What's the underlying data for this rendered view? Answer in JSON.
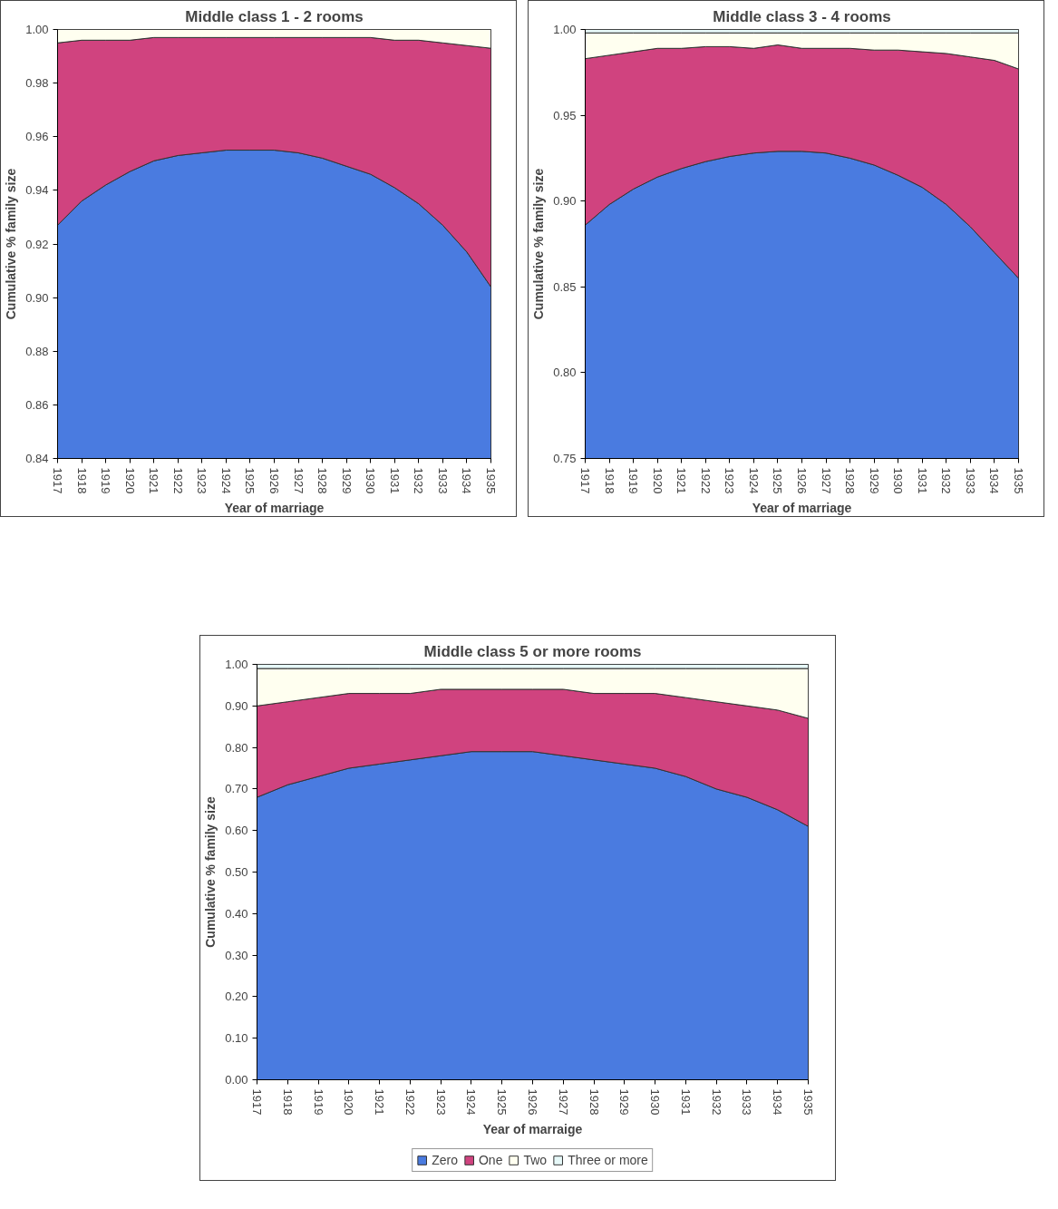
{
  "chart_data": [
    {
      "type": "area",
      "title": "Middle class 1 - 2 rooms",
      "xlabel": "Year of marriage",
      "ylabel": "Cumulative % family size",
      "grid": false,
      "categories": [
        "1917",
        "1918",
        "1919",
        "1920",
        "1921",
        "1922",
        "1923",
        "1924",
        "1925",
        "1926",
        "1927",
        "1928",
        "1929",
        "1930",
        "1931",
        "1932",
        "1933",
        "1934",
        "1935"
      ],
      "ylim": [
        0.84,
        1.0
      ],
      "yticks": [
        {
          "value": 0.84,
          "label": "0.84"
        },
        {
          "value": 0.86,
          "label": "0.86"
        },
        {
          "value": 0.88,
          "label": "0.88"
        },
        {
          "value": 0.9,
          "label": "0.90"
        },
        {
          "value": 0.92,
          "label": "0.92"
        },
        {
          "value": 0.94,
          "label": "0.94"
        },
        {
          "value": 0.96,
          "label": "0.96"
        },
        {
          "value": 0.98,
          "label": "0.98"
        },
        {
          "value": 1.0,
          "label": "1.00"
        }
      ],
      "series": [
        {
          "color": "#4a7be0",
          "values": [
            0.927,
            0.936,
            0.942,
            0.947,
            0.951,
            0.953,
            0.954,
            0.955,
            0.955,
            0.955,
            0.954,
            0.952,
            0.949,
            0.946,
            0.941,
            0.935,
            0.927,
            0.917,
            0.904
          ]
        },
        {
          "color": "#d0437f",
          "values": [
            0.995,
            0.996,
            0.996,
            0.996,
            0.997,
            0.997,
            0.997,
            0.997,
            0.997,
            0.997,
            0.997,
            0.997,
            0.997,
            0.997,
            0.996,
            0.996,
            0.995,
            0.994,
            0.993
          ]
        },
        {
          "color": "#fffff0",
          "values": [
            1.0,
            1.0,
            1.0,
            1.0,
            1.0,
            1.0,
            1.0,
            1.0,
            1.0,
            1.0,
            1.0,
            1.0,
            1.0,
            1.0,
            1.0,
            1.0,
            1.0,
            1.0,
            1.0
          ]
        }
      ]
    },
    {
      "type": "area",
      "title": "Middle class 3 - 4 rooms",
      "xlabel": "Year of marriage",
      "ylabel": "Cumulative % family size",
      "grid": false,
      "categories": [
        "1917",
        "1918",
        "1919",
        "1920",
        "1921",
        "1922",
        "1923",
        "1924",
        "1925",
        "1926",
        "1927",
        "1928",
        "1929",
        "1930",
        "1931",
        "1932",
        "1933",
        "1934",
        "1935"
      ],
      "ylim": [
        0.75,
        1.0
      ],
      "yticks": [
        {
          "value": 0.75,
          "label": "0.75"
        },
        {
          "value": 0.8,
          "label": "0.80"
        },
        {
          "value": 0.85,
          "label": "0.85"
        },
        {
          "value": 0.9,
          "label": "0.90"
        },
        {
          "value": 0.95,
          "label": "0.95"
        },
        {
          "value": 1.0,
          "label": "1.00"
        }
      ],
      "series": [
        {
          "color": "#4a7be0",
          "values": [
            0.886,
            0.898,
            0.907,
            0.914,
            0.919,
            0.923,
            0.926,
            0.928,
            0.929,
            0.929,
            0.928,
            0.925,
            0.921,
            0.915,
            0.908,
            0.898,
            0.885,
            0.87,
            0.855
          ]
        },
        {
          "color": "#d0437f",
          "values": [
            0.983,
            0.985,
            0.987,
            0.989,
            0.989,
            0.99,
            0.99,
            0.989,
            0.991,
            0.989,
            0.989,
            0.989,
            0.988,
            0.988,
            0.987,
            0.986,
            0.984,
            0.982,
            0.977
          ]
        },
        {
          "color": "#fffff0",
          "values": [
            0.998,
            0.998,
            0.998,
            0.998,
            0.998,
            0.998,
            0.998,
            0.998,
            0.998,
            0.998,
            0.998,
            0.998,
            0.998,
            0.998,
            0.998,
            0.998,
            0.998,
            0.998,
            0.998
          ]
        },
        {
          "color": "#e6f8f8",
          "values": [
            1.0,
            1.0,
            1.0,
            1.0,
            1.0,
            1.0,
            1.0,
            1.0,
            1.0,
            1.0,
            1.0,
            1.0,
            1.0,
            1.0,
            1.0,
            1.0,
            1.0,
            1.0,
            1.0
          ]
        }
      ]
    },
    {
      "type": "area",
      "title": "Middle class 5 or more rooms",
      "xlabel": "Year of marraige",
      "ylabel": "Cumulative % family size",
      "legend": "bottom",
      "grid": false,
      "categories": [
        "1917",
        "1918",
        "1919",
        "1920",
        "1921",
        "1922",
        "1923",
        "1924",
        "1925",
        "1926",
        "1927",
        "1928",
        "1929",
        "1930",
        "1931",
        "1932",
        "1933",
        "1934",
        "1935"
      ],
      "ylim": [
        0.0,
        1.0
      ],
      "yticks": [
        {
          "value": 0,
          "label": "0.00"
        },
        {
          "value": 0.1,
          "label": "0.10"
        },
        {
          "value": 0.2,
          "label": "0.20"
        },
        {
          "value": 0.3,
          "label": "0.30"
        },
        {
          "value": 0.4,
          "label": "0.40"
        },
        {
          "value": 0.5,
          "label": "0.50"
        },
        {
          "value": 0.6,
          "label": "0.60"
        },
        {
          "value": 0.7,
          "label": "0.70"
        },
        {
          "value": 0.8,
          "label": "0.80"
        },
        {
          "value": 0.9,
          "label": "0.90"
        },
        {
          "value": 1.0,
          "label": "1.00"
        }
      ],
      "series": [
        {
          "name": "Zero",
          "color": "#4a7be0",
          "values": [
            0.68,
            0.71,
            0.73,
            0.75,
            0.76,
            0.77,
            0.78,
            0.79,
            0.79,
            0.79,
            0.78,
            0.77,
            0.76,
            0.75,
            0.73,
            0.7,
            0.68,
            0.65,
            0.61
          ]
        },
        {
          "name": "One",
          "color": "#d0437f",
          "values": [
            0.9,
            0.91,
            0.92,
            0.93,
            0.93,
            0.93,
            0.94,
            0.94,
            0.94,
            0.94,
            0.94,
            0.93,
            0.93,
            0.93,
            0.92,
            0.91,
            0.9,
            0.89,
            0.87
          ]
        },
        {
          "name": "Two",
          "color": "#fffff0",
          "values": [
            0.99,
            0.99,
            0.99,
            0.99,
            0.99,
            0.99,
            0.99,
            0.99,
            0.99,
            0.99,
            0.99,
            0.99,
            0.99,
            0.99,
            0.99,
            0.99,
            0.99,
            0.99,
            0.99
          ]
        },
        {
          "name": "Three or more",
          "color": "#e6f8f8",
          "values": [
            1.0,
            1.0,
            1.0,
            1.0,
            1.0,
            1.0,
            1.0,
            1.0,
            1.0,
            1.0,
            1.0,
            1.0,
            1.0,
            1.0,
            1.0,
            1.0,
            1.0,
            1.0,
            1.0
          ]
        }
      ]
    }
  ]
}
